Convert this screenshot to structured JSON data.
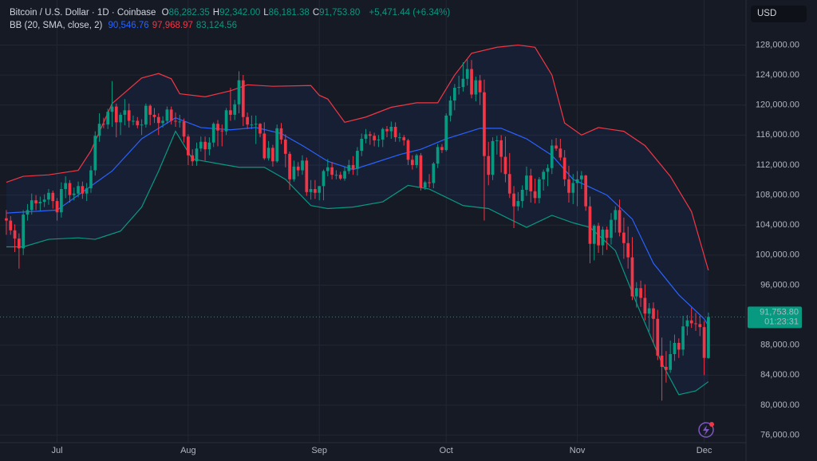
{
  "header": {
    "symbol": "Bitcoin / U.S. Dollar · 1D · Coinbase",
    "ohlc": [
      {
        "key": "O",
        "value": "86,282.35"
      },
      {
        "key": "H",
        "value": "92,342.00"
      },
      {
        "key": "L",
        "value": "86,181.38"
      },
      {
        "key": "C",
        "value": "91,753.80"
      }
    ],
    "change": "+5,471.44 (+6.34%)",
    "indicator": "BB (20, SMA, close, 2)",
    "indicator_values": [
      "90,546.76",
      "97,968.97",
      "83,124.56"
    ],
    "currency": "USD"
  },
  "chart_data": {
    "type": "candlestick",
    "up_color": "#089981",
    "down_color": "#f23645",
    "open": [
      104900,
      104600,
      103300,
      102200,
      100900,
      105400,
      106000,
      107300,
      106900,
      107100,
      107400,
      108300,
      107200,
      105700,
      108800,
      109600,
      108000,
      108200,
      109200,
      108200,
      108900,
      111300,
      115900,
      117500,
      117400,
      119100,
      119800,
      117700,
      118700,
      119300,
      117900,
      117900,
      117300,
      117400,
      119900,
      118700,
      118400,
      117600,
      117900,
      119400,
      117900,
      117800,
      117800,
      115800,
      113300,
      112500,
      114200,
      115100,
      114100,
      115000,
      117500,
      116600,
      116500,
      119300,
      118700,
      120100,
      123300,
      118400,
      117400,
      117400,
      117500,
      116200,
      112900,
      114300,
      112500,
      116900,
      115400,
      113500,
      110100,
      111800,
      111300,
      112600,
      108400,
      108800,
      108300,
      109200,
      111200,
      111700,
      110700,
      110700,
      110200,
      111200,
      112000,
      111500,
      113900,
      115500,
      116100,
      115900,
      115300,
      115400,
      116800,
      116500,
      117100,
      115700,
      115700,
      115300,
      112700,
      112000,
      113300,
      109000,
      109700,
      109600,
      112200,
      114400,
      114000,
      118600,
      120600,
      122300,
      122400,
      123500,
      124800,
      121400,
      123300,
      121700,
      113200,
      110700,
      115200,
      115300,
      113100,
      110800,
      108200,
      106500,
      107200,
      108700,
      110600,
      108500,
      107600,
      110100,
      111100,
      111600,
      114600,
      114200,
      113000,
      110100,
      108300,
      109600,
      110100,
      110600,
      106500,
      101500,
      103900,
      101300,
      103400,
      102300,
      104700,
      106000,
      103000,
      101600,
      99700,
      94500,
      95600,
      94300,
      92200,
      92900,
      91500,
      86600,
      85100,
      84700,
      86800,
      88300,
      87400,
      90500,
      91300,
      90900,
      90800,
      90400,
      86282.35
    ],
    "high": [
      106000,
      105200,
      104100,
      102900,
      106000,
      106800,
      108200,
      108000,
      107800,
      108100,
      108800,
      108600,
      107600,
      109700,
      110500,
      110000,
      109000,
      109800,
      109800,
      109600,
      111900,
      116500,
      118900,
      118300,
      119500,
      123200,
      120200,
      119000,
      120800,
      120200,
      118600,
      118400,
      118100,
      120200,
      120100,
      119600,
      118900,
      118500,
      119800,
      119800,
      119000,
      118700,
      118200,
      116100,
      114100,
      115000,
      115800,
      115800,
      115700,
      117700,
      118000,
      117400,
      119600,
      122300,
      120700,
      124500,
      124000,
      119000,
      118600,
      118600,
      117600,
      117700,
      115200,
      114700,
      117400,
      117600,
      116100,
      113800,
      112600,
      112400,
      113300,
      113000,
      110000,
      110000,
      109200,
      111400,
      112800,
      112400,
      111300,
      111100,
      111800,
      112700,
      113200,
      114400,
      116200,
      116800,
      116500,
      116300,
      116000,
      117000,
      117200,
      117800,
      117700,
      116300,
      116000,
      115500,
      113300,
      113500,
      113600,
      109900,
      110800,
      112400,
      114800,
      114800,
      118900,
      121200,
      122800,
      123900,
      125700,
      126100,
      126000,
      123800,
      124000,
      123400,
      115100,
      115700,
      115900,
      116000,
      115800,
      113600,
      109200,
      108400,
      109300,
      111800,
      111500,
      110200,
      110400,
      111400,
      112100,
      115400,
      115600,
      115500,
      114000,
      111900,
      110800,
      111200,
      111200,
      110700,
      107800,
      104100,
      104300,
      103800,
      103800,
      105600,
      106500,
      107400,
      105000,
      103800,
      102400,
      96400,
      96600,
      96100,
      93600,
      93700,
      92700,
      89000,
      87200,
      88600,
      89400,
      88900,
      91900,
      92000,
      93000,
      92300,
      91900,
      91200,
      92342
    ],
    "low": [
      102700,
      102700,
      100400,
      98200,
      100000,
      104600,
      105400,
      106000,
      105900,
      106400,
      106700,
      106200,
      104600,
      105000,
      107600,
      107000,
      107300,
      107700,
      107500,
      107200,
      108300,
      110600,
      115100,
      116900,
      116800,
      117100,
      115700,
      116000,
      117300,
      117000,
      117300,
      116900,
      116000,
      117000,
      117300,
      117600,
      116000,
      117000,
      117500,
      117400,
      117100,
      117000,
      115000,
      112000,
      111900,
      111900,
      113800,
      112600,
      113300,
      114400,
      114500,
      114500,
      116000,
      117900,
      118000,
      118900,
      117200,
      116800,
      116800,
      114800,
      115700,
      112700,
      112600,
      111800,
      112300,
      114800,
      111700,
      108700,
      109800,
      110500,
      110700,
      107900,
      107400,
      107500,
      107300,
      107300,
      110500,
      110100,
      110100,
      110000,
      109900,
      110800,
      110700,
      110600,
      113200,
      114900,
      114700,
      114500,
      114400,
      114400,
      115700,
      115500,
      115100,
      115100,
      114600,
      112000,
      111400,
      111600,
      108600,
      108700,
      109000,
      108900,
      111600,
      113600,
      113800,
      117800,
      119300,
      121400,
      121800,
      122600,
      120900,
      120500,
      120000,
      104600,
      109300,
      110000,
      113400,
      111000,
      109700,
      107600,
      103600,
      105900,
      106300,
      107900,
      107000,
      106900,
      106900,
      108600,
      109200,
      110800,
      113900,
      112600,
      109200,
      107000,
      106800,
      106500,
      108800,
      105900,
      98900,
      99300,
      100300,
      100000,
      100700,
      101400,
      103000,
      102500,
      99500,
      98200,
      94000,
      93000,
      93100,
      91300,
      89800,
      88300,
      86000,
      80600,
      83000,
      84300,
      85900,
      86300,
      86600,
      89300,
      90300,
      89900,
      89200,
      84000,
      86181.38
    ],
    "close": [
      104600,
      103300,
      102200,
      100900,
      105400,
      106000,
      107300,
      106900,
      107100,
      107400,
      108300,
      107200,
      105700,
      108800,
      109600,
      108000,
      108200,
      109200,
      108200,
      108900,
      111300,
      115900,
      117500,
      117400,
      119100,
      119800,
      117700,
      118700,
      119300,
      117900,
      117900,
      117300,
      117400,
      119900,
      118700,
      118400,
      117600,
      117900,
      119400,
      117900,
      117800,
      117800,
      115800,
      113300,
      112500,
      114200,
      115100,
      114100,
      115000,
      117500,
      116600,
      116500,
      119300,
      118700,
      120100,
      123300,
      118400,
      117400,
      117400,
      117500,
      116200,
      112900,
      114300,
      112500,
      116900,
      115400,
      113500,
      110100,
      111800,
      111300,
      112600,
      108400,
      108800,
      108300,
      109200,
      111200,
      111700,
      110700,
      110700,
      110200,
      111200,
      112000,
      111500,
      113900,
      115500,
      116100,
      115900,
      115300,
      115400,
      116800,
      116500,
      117100,
      115700,
      115700,
      115300,
      112700,
      112000,
      113300,
      109000,
      109700,
      109600,
      112200,
      114400,
      114000,
      118600,
      120600,
      122300,
      122400,
      123500,
      124800,
      121400,
      123300,
      121700,
      113200,
      110700,
      115200,
      115300,
      113100,
      110800,
      108200,
      106500,
      107200,
      108700,
      110600,
      108500,
      107600,
      110100,
      111100,
      111600,
      114600,
      114200,
      113000,
      110100,
      108300,
      109600,
      110100,
      110600,
      106500,
      101500,
      103900,
      101300,
      103400,
      102300,
      104700,
      106000,
      103000,
      101600,
      99700,
      94500,
      95600,
      94300,
      92200,
      92900,
      91500,
      86600,
      85100,
      84700,
      86800,
      88300,
      87400,
      90500,
      91300,
      90900,
      90800,
      90400,
      86300,
      91753.8
    ],
    "bands": [
      {
        "color": "#f23645",
        "x": [
          0,
          4,
          10,
          17,
          20,
          25,
          32,
          36,
          39,
          41,
          47,
          53,
          57,
          63,
          72,
          74,
          76,
          80,
          85,
          91,
          97,
          102,
          106,
          110,
          116,
          121,
          125,
          129,
          132,
          136,
          140,
          146,
          151,
          157,
          162,
          166
        ],
        "values": [
          109700,
          110500,
          110700,
          111300,
          113900,
          120200,
          123600,
          124200,
          123500,
          121500,
          121100,
          121900,
          122700,
          122500,
          122600,
          121300,
          120800,
          117700,
          118400,
          119700,
          120300,
          120300,
          124000,
          126900,
          127700,
          128000,
          127700,
          124000,
          117600,
          116000,
          117000,
          116500,
          114600,
          110500,
          105800,
          97968.97
        ]
      },
      {
        "color": "#2962ff",
        "x": [
          0,
          12,
          17,
          25,
          32,
          40,
          46,
          53,
          59,
          65,
          70,
          76,
          82,
          87,
          93,
          98,
          104,
          112,
          117,
          123,
          129,
          134,
          142,
          148,
          153,
          159,
          165,
          166
        ],
        "values": [
          105600,
          106000,
          108000,
          111200,
          115500,
          118300,
          117000,
          116700,
          117000,
          116200,
          114600,
          112500,
          111400,
          112300,
          113400,
          114100,
          115500,
          116900,
          116900,
          115500,
          113300,
          110100,
          108000,
          104800,
          98900,
          94700,
          91500,
          90546.76
        ]
      },
      {
        "color": "#089981",
        "x": [
          0,
          4,
          10,
          17,
          21,
          27,
          32,
          36,
          40,
          44,
          49,
          55,
          61,
          66,
          72,
          76,
          82,
          89,
          95,
          100,
          108,
          114,
          119,
          123,
          129,
          134,
          138,
          144,
          149,
          155,
          159,
          163,
          166
        ],
        "values": [
          101100,
          101100,
          102100,
          102300,
          102100,
          103200,
          106400,
          111200,
          116500,
          112800,
          112300,
          111700,
          111700,
          110100,
          106600,
          106200,
          106400,
          107100,
          109300,
          108800,
          106600,
          106200,
          104800,
          103700,
          105300,
          104300,
          103700,
          100600,
          93600,
          85600,
          81400,
          81900,
          83124.56
        ]
      }
    ],
    "xlim": [
      -1.5,
      173
    ],
    "ylim": [
      75000,
      134000
    ],
    "xticks": [
      {
        "value": 12,
        "label": "Jul"
      },
      {
        "value": 43,
        "label": "Aug"
      },
      {
        "value": 74,
        "label": "Sep"
      },
      {
        "value": 104,
        "label": "Oct"
      },
      {
        "value": 135,
        "label": "Nov"
      },
      {
        "value": 165,
        "label": "Dec"
      }
    ],
    "yticks": [
      {
        "value": 76000,
        "label": "76,000.00"
      },
      {
        "value": 80000,
        "label": "80,000.00"
      },
      {
        "value": 84000,
        "label": "84,000.00"
      },
      {
        "value": 88000,
        "label": "88,000.00"
      },
      {
        "value": 96000,
        "label": "96,000.00"
      },
      {
        "value": 100000,
        "label": "100,000.00"
      },
      {
        "value": 104000,
        "label": "104,000.00"
      },
      {
        "value": 108000,
        "label": "108,000.00"
      },
      {
        "value": 112000,
        "label": "112,000.00"
      },
      {
        "value": 116000,
        "label": "116,000.00"
      },
      {
        "value": 120000,
        "label": "120,000.00"
      },
      {
        "value": 124000,
        "label": "124,000.00"
      },
      {
        "value": 128000,
        "label": "128,000.00"
      }
    ],
    "grid": true,
    "price_label": "91,753.80",
    "countdown": "01:23:31"
  }
}
